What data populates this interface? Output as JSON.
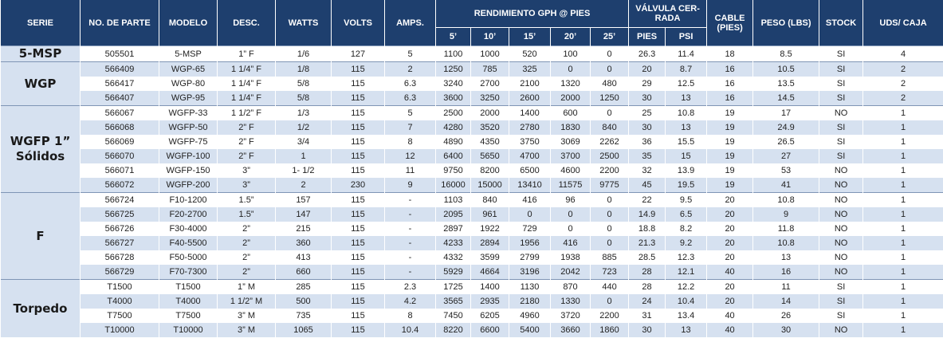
{
  "header": {
    "serie": "SERIE",
    "parte": "NO. DE PARTE",
    "modelo": "MODELO",
    "desc": "DESC.",
    "watts": "WATTS",
    "volts": "VOLTS",
    "amps": "AMPS.",
    "rendimiento": "RENDIMIENTO GPH @ PIES",
    "valvula": "VÁLVULA CER-RADA",
    "cable": "CABLE (PIES)",
    "peso": "PESO (LBS)",
    "stock": "STOCK",
    "uds": "UDS/ CAJA",
    "feet": [
      "5’",
      "10’",
      "15’",
      "20’",
      "25’"
    ],
    "valvula_sub": [
      "PIES",
      "PSI"
    ]
  },
  "groups": [
    {
      "serie": "5-MSP",
      "rows": [
        [
          "505501",
          "5-MSP",
          "1” F",
          "1/6",
          "127",
          "5",
          "1100",
          "1000",
          "520",
          "100",
          "0",
          "26.3",
          "11.4",
          "18",
          "8.5",
          "SI",
          "4"
        ]
      ]
    },
    {
      "serie": "WGP",
      "rows": [
        [
          "566409",
          "WGP-65",
          "1 1/4” F",
          "1/8",
          "115",
          "2",
          "1250",
          "785",
          "325",
          "0",
          "0",
          "20",
          "8.7",
          "16",
          "10.5",
          "SI",
          "2"
        ],
        [
          "566417",
          "WGP-80",
          "1 1/4” F",
          "5/8",
          "115",
          "6.3",
          "3240",
          "2700",
          "2100",
          "1320",
          "480",
          "29",
          "12.5",
          "16",
          "13.5",
          "SI",
          "2"
        ],
        [
          "566407",
          "WGP-95",
          "1 1/4” F",
          "5/8",
          "115",
          "6.3",
          "3600",
          "3250",
          "2600",
          "2000",
          "1250",
          "30",
          "13",
          "16",
          "14.5",
          "SI",
          "2"
        ]
      ]
    },
    {
      "serie": "WGFP 1” Sólidos",
      "rows": [
        [
          "566067",
          "WGFP-33",
          "1 1/2” F",
          "1/3",
          "115",
          "5",
          "2500",
          "2000",
          "1400",
          "600",
          "0",
          "25",
          "10.8",
          "19",
          "17",
          "NO",
          "1"
        ],
        [
          "566068",
          "WGFP-50",
          "2” F",
          "1/2",
          "115",
          "7",
          "4280",
          "3520",
          "2780",
          "1830",
          "840",
          "30",
          "13",
          "19",
          "24.9",
          "SI",
          "1"
        ],
        [
          "566069",
          "WGFP-75",
          "2” F",
          "3/4",
          "115",
          "8",
          "4890",
          "4350",
          "3750",
          "3069",
          "2262",
          "36",
          "15.5",
          "19",
          "26.5",
          "SI",
          "1"
        ],
        [
          "566070",
          "WGFP-100",
          "2” F",
          "1",
          "115",
          "12",
          "6400",
          "5650",
          "4700",
          "3700",
          "2500",
          "35",
          "15",
          "19",
          "27",
          "SI",
          "1"
        ],
        [
          "566071",
          "WGFP-150",
          "3”",
          "1- 1/2",
          "115",
          "11",
          "9750",
          "8200",
          "6500",
          "4600",
          "2200",
          "32",
          "13.9",
          "19",
          "53",
          "NO",
          "1"
        ],
        [
          "566072",
          "WGFP-200",
          "3”",
          "2",
          "230",
          "9",
          "16000",
          "15000",
          "13410",
          "11575",
          "9775",
          "45",
          "19.5",
          "19",
          "41",
          "NO",
          "1"
        ]
      ]
    },
    {
      "serie": "F",
      "rows": [
        [
          "566724",
          "F10-1200",
          "1.5”",
          "157",
          "115",
          "-",
          "1103",
          "840",
          "416",
          "96",
          "0",
          "22",
          "9.5",
          "20",
          "10.8",
          "NO",
          "1"
        ],
        [
          "566725",
          "F20-2700",
          "1.5”",
          "147",
          "115",
          "-",
          "2095",
          "961",
          "0",
          "0",
          "0",
          "14.9",
          "6.5",
          "20",
          "9",
          "NO",
          "1"
        ],
        [
          "566726",
          "F30-4000",
          "2”",
          "215",
          "115",
          "-",
          "2897",
          "1922",
          "729",
          "0",
          "0",
          "18.8",
          "8.2",
          "20",
          "11.8",
          "NO",
          "1"
        ],
        [
          "566727",
          "F40-5500",
          "2”",
          "360",
          "115",
          "-",
          "4233",
          "2894",
          "1956",
          "416",
          "0",
          "21.3",
          "9.2",
          "20",
          "10.8",
          "NO",
          "1"
        ],
        [
          "566728",
          "F50-5000",
          "2”",
          "413",
          "115",
          "-",
          "4332",
          "3599",
          "2799",
          "1938",
          "885",
          "28.5",
          "12.3",
          "20",
          "13",
          "NO",
          "1"
        ],
        [
          "566729",
          "F70-7300",
          "2”",
          "660",
          "115",
          "-",
          "5929",
          "4664",
          "3196",
          "2042",
          "723",
          "28",
          "12.1",
          "40",
          "16",
          "NO",
          "1"
        ]
      ]
    },
    {
      "serie": "Torpedo",
      "rows": [
        [
          "T1500",
          "T1500",
          "1” M",
          "285",
          "115",
          "2.3",
          "1725",
          "1400",
          "1130",
          "870",
          "440",
          "28",
          "12.2",
          "20",
          "11",
          "SI",
          "1"
        ],
        [
          "T4000",
          "T4000",
          "1 1/2” M",
          "500",
          "115",
          "4.2",
          "3565",
          "2935",
          "2180",
          "1330",
          "0",
          "24",
          "10.4",
          "20",
          "14",
          "SI",
          "1"
        ],
        [
          "T7500",
          "T7500",
          "3” M",
          "735",
          "115",
          "8",
          "7450",
          "6205",
          "4960",
          "3720",
          "2200",
          "31",
          "13.4",
          "40",
          "26",
          "SI",
          "1"
        ],
        [
          "T10000",
          "T10000",
          "3” M",
          "1065",
          "115",
          "10.4",
          "8220",
          "6600",
          "5400",
          "3660",
          "1860",
          "30",
          "13",
          "40",
          "30",
          "NO",
          "1"
        ]
      ]
    }
  ],
  "colors": {
    "header_bg": "#1e3f6e",
    "row_alt": "#d6e1f0",
    "serie_bg": "#d6e1f0"
  }
}
